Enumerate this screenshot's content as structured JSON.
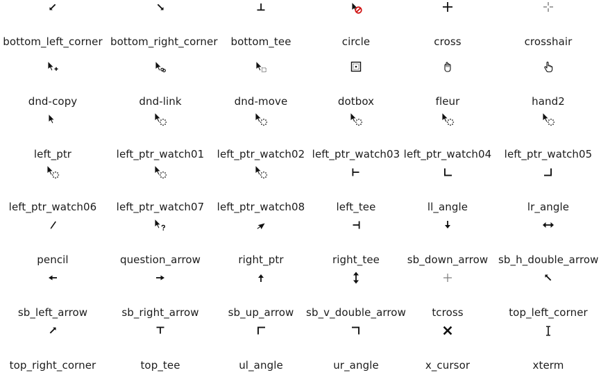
{
  "cursors": [
    {
      "name": "bottom_left_corner",
      "icon": "bottom-left-corner-cursor-icon"
    },
    {
      "name": "bottom_right_corner",
      "icon": "bottom-right-corner-cursor-icon"
    },
    {
      "name": "bottom_tee",
      "icon": "bottom-tee-cursor-icon"
    },
    {
      "name": "circle",
      "icon": "circle-forbidden-cursor-icon"
    },
    {
      "name": "cross",
      "icon": "cross-cursor-icon"
    },
    {
      "name": "crosshair",
      "icon": "crosshair-cursor-icon"
    },
    {
      "name": "dnd-copy",
      "icon": "dnd-copy-cursor-icon"
    },
    {
      "name": "dnd-link",
      "icon": "dnd-link-cursor-icon"
    },
    {
      "name": "dnd-move",
      "icon": "dnd-move-cursor-icon"
    },
    {
      "name": "dotbox",
      "icon": "dotbox-cursor-icon"
    },
    {
      "name": "fleur",
      "icon": "fleur-hand-cursor-icon"
    },
    {
      "name": "hand2",
      "icon": "hand2-cursor-icon"
    },
    {
      "name": "left_ptr",
      "icon": "left-ptr-cursor-icon"
    },
    {
      "name": "left_ptr_watch01",
      "icon": "left-ptr-watch-cursor-icon"
    },
    {
      "name": "left_ptr_watch02",
      "icon": "left-ptr-watch-cursor-icon"
    },
    {
      "name": "left_ptr_watch03",
      "icon": "left-ptr-watch-cursor-icon"
    },
    {
      "name": "left_ptr_watch04",
      "icon": "left-ptr-watch-cursor-icon"
    },
    {
      "name": "left_ptr_watch05",
      "icon": "left-ptr-watch-cursor-icon"
    },
    {
      "name": "left_ptr_watch06",
      "icon": "left-ptr-watch-cursor-icon"
    },
    {
      "name": "left_ptr_watch07",
      "icon": "left-ptr-watch-cursor-icon"
    },
    {
      "name": "left_ptr_watch08",
      "icon": "left-ptr-watch-cursor-icon"
    },
    {
      "name": "left_tee",
      "icon": "left-tee-cursor-icon"
    },
    {
      "name": "ll_angle",
      "icon": "ll-angle-cursor-icon"
    },
    {
      "name": "lr_angle",
      "icon": "lr-angle-cursor-icon"
    },
    {
      "name": "pencil",
      "icon": "pencil-cursor-icon"
    },
    {
      "name": "question_arrow",
      "icon": "question-arrow-cursor-icon"
    },
    {
      "name": "right_ptr",
      "icon": "right-ptr-cursor-icon"
    },
    {
      "name": "right_tee",
      "icon": "right-tee-cursor-icon"
    },
    {
      "name": "sb_down_arrow",
      "icon": "sb-down-arrow-cursor-icon"
    },
    {
      "name": "sb_h_double_arrow",
      "icon": "sb-h-double-arrow-cursor-icon"
    },
    {
      "name": "sb_left_arrow",
      "icon": "sb-left-arrow-cursor-icon"
    },
    {
      "name": "sb_right_arrow",
      "icon": "sb-right-arrow-cursor-icon"
    },
    {
      "name": "sb_up_arrow",
      "icon": "sb-up-arrow-cursor-icon"
    },
    {
      "name": "sb_v_double_arrow",
      "icon": "sb-v-double-arrow-cursor-icon"
    },
    {
      "name": "tcross",
      "icon": "tcross-cursor-icon"
    },
    {
      "name": "top_left_corner",
      "icon": "top-left-corner-cursor-icon"
    },
    {
      "name": "top_right_corner",
      "icon": "top-right-corner-cursor-icon"
    },
    {
      "name": "top_tee",
      "icon": "top-tee-cursor-icon"
    },
    {
      "name": "ul_angle",
      "icon": "ul-angle-cursor-icon"
    },
    {
      "name": "ur_angle",
      "icon": "ur-angle-cursor-icon"
    },
    {
      "name": "x_cursor",
      "icon": "x-cursor-icon"
    },
    {
      "name": "xterm",
      "icon": "xterm-cursor-icon"
    }
  ],
  "colors": {
    "text": "#1b1b1b",
    "cursor_fill": "#111111",
    "cursor_outline": "#ffffff",
    "forbidden_red": "#d01414",
    "background": "#ffffff"
  }
}
